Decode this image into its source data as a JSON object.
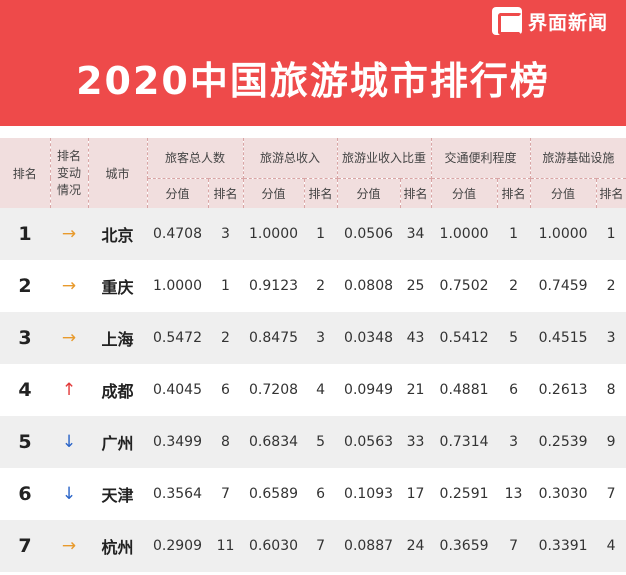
{
  "brand": {
    "name": "界面新闻",
    "icon": "jiemian-logo-icon"
  },
  "title": "2020中国旅游城市排行榜",
  "headers": {
    "rank": "排名",
    "change": [
      "排名",
      "变动",
      "情况"
    ],
    "city": "城市",
    "groups": [
      "旅客总人数",
      "旅游总收入",
      "旅游业收入比重",
      "交通便利程度",
      "旅游基础设施"
    ],
    "score": "分值",
    "sub_rank": "排名"
  },
  "change_symbols": {
    "same": "→",
    "up": "↑",
    "down": "↓"
  },
  "colors": {
    "header_red": "#ee4a4a",
    "same": "#e89a2c",
    "up": "#e23a3a",
    "down": "#2a64c8"
  },
  "rows": [
    {
      "rank": "1",
      "change": "same",
      "city": "北京",
      "metrics": [
        [
          "0.4708",
          "3"
        ],
        [
          "1.0000",
          "1"
        ],
        [
          "0.0506",
          "34"
        ],
        [
          "1.0000",
          "1"
        ],
        [
          "1.0000",
          "1"
        ]
      ]
    },
    {
      "rank": "2",
      "change": "same",
      "city": "重庆",
      "metrics": [
        [
          "1.0000",
          "1"
        ],
        [
          "0.9123",
          "2"
        ],
        [
          "0.0808",
          "25"
        ],
        [
          "0.7502",
          "2"
        ],
        [
          "0.7459",
          "2"
        ]
      ]
    },
    {
      "rank": "3",
      "change": "same",
      "city": "上海",
      "metrics": [
        [
          "0.5472",
          "2"
        ],
        [
          "0.8475",
          "3"
        ],
        [
          "0.0348",
          "43"
        ],
        [
          "0.5412",
          "5"
        ],
        [
          "0.4515",
          "3"
        ]
      ]
    },
    {
      "rank": "4",
      "change": "up",
      "city": "成都",
      "metrics": [
        [
          "0.4045",
          "6"
        ],
        [
          "0.7208",
          "4"
        ],
        [
          "0.0949",
          "21"
        ],
        [
          "0.4881",
          "6"
        ],
        [
          "0.2613",
          "8"
        ]
      ]
    },
    {
      "rank": "5",
      "change": "down",
      "city": "广州",
      "metrics": [
        [
          "0.3499",
          "8"
        ],
        [
          "0.6834",
          "5"
        ],
        [
          "0.0563",
          "33"
        ],
        [
          "0.7314",
          "3"
        ],
        [
          "0.2539",
          "9"
        ]
      ]
    },
    {
      "rank": "6",
      "change": "down",
      "city": "天津",
      "metrics": [
        [
          "0.3564",
          "7"
        ],
        [
          "0.6589",
          "6"
        ],
        [
          "0.1093",
          "17"
        ],
        [
          "0.2591",
          "13"
        ],
        [
          "0.3030",
          "7"
        ]
      ]
    },
    {
      "rank": "7",
      "change": "same",
      "city": "杭州",
      "metrics": [
        [
          "0.2909",
          "11"
        ],
        [
          "0.6030",
          "7"
        ],
        [
          "0.0887",
          "24"
        ],
        [
          "0.3659",
          "7"
        ],
        [
          "0.3391",
          "4"
        ]
      ]
    }
  ]
}
